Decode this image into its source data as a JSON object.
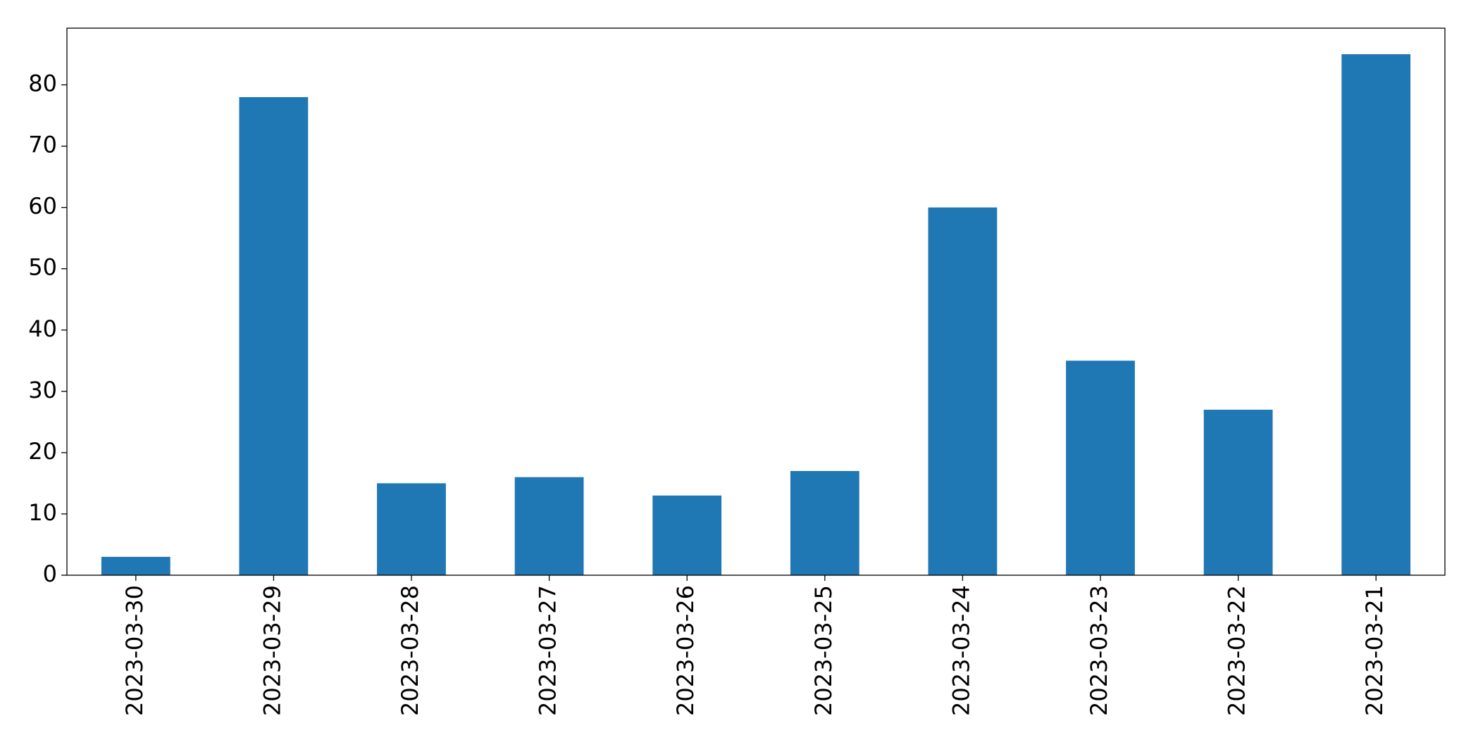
{
  "chart_data": {
    "type": "bar",
    "categories": [
      "2023-03-30",
      "2023-03-29",
      "2023-03-28",
      "2023-03-27",
      "2023-03-26",
      "2023-03-25",
      "2023-03-24",
      "2023-03-23",
      "2023-03-22",
      "2023-03-21"
    ],
    "values": [
      3,
      78,
      15,
      16,
      13,
      17,
      60,
      35,
      27,
      85
    ],
    "color": "#1f77b4",
    "ylim": [
      0,
      89.25
    ],
    "yticks": [
      0,
      10,
      20,
      30,
      40,
      50,
      60,
      70,
      80
    ],
    "grid": false
  }
}
